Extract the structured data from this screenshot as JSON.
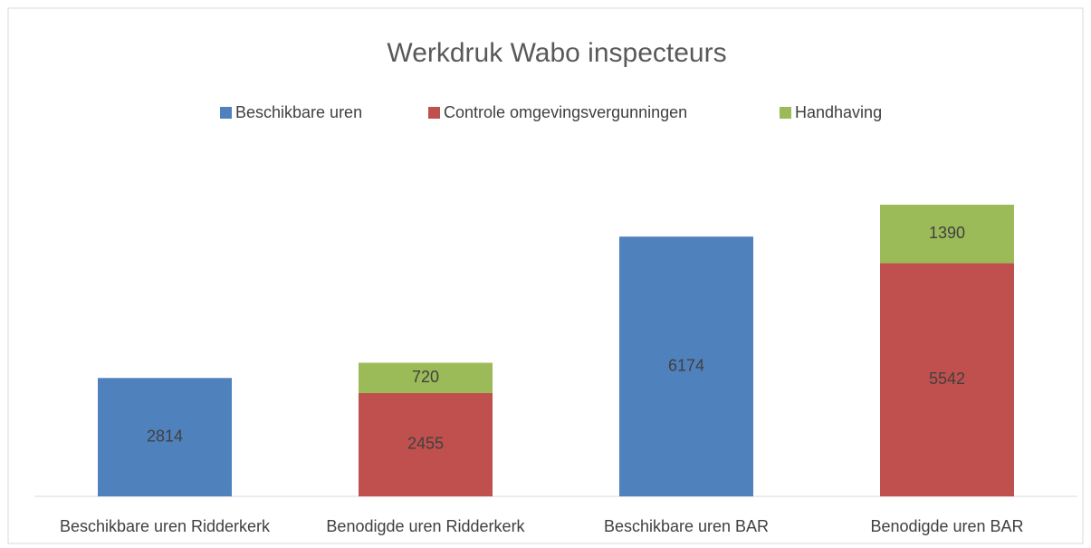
{
  "chart_data": {
    "type": "stacked_bar",
    "title": "Werkdruk Wabo inspecteurs",
    "categories": [
      "Beschikbare uren Ridderkerk",
      "Benodigde uren Ridderkerk",
      "Beschikbare uren BAR",
      "Benodigde uren BAR"
    ],
    "series": [
      {
        "name": "Beschikbare uren",
        "color": "#4f81bd",
        "values": [
          2814,
          null,
          6174,
          null
        ]
      },
      {
        "name": "Controle omgevingsvergunningen",
        "color": "#c0504d",
        "values": [
          null,
          2455,
          null,
          5542
        ]
      },
      {
        "name": "Handhaving",
        "color": "#9bbb59",
        "values": [
          null,
          720,
          null,
          1390
        ]
      }
    ],
    "legend": "top"
  }
}
